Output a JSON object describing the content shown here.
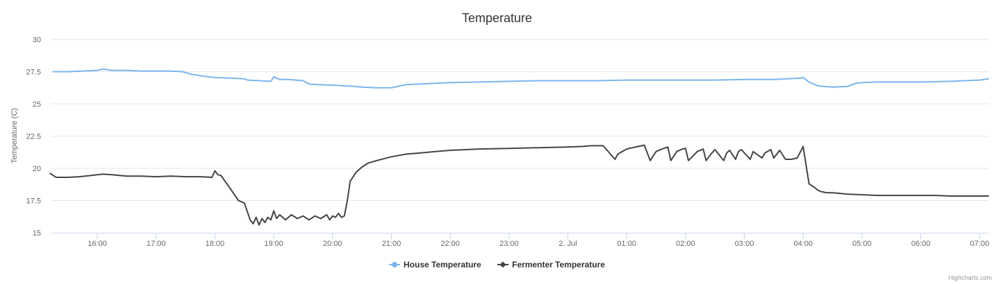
{
  "chart_data": {
    "type": "line",
    "title": "Temperature",
    "ylabel": "Temperature (C)",
    "xlabel": "",
    "ylim": [
      15,
      30
    ],
    "yticks": [
      "15",
      "17.5",
      "20",
      "22.5",
      "25",
      "27.5",
      "30"
    ],
    "ytick_values": [
      15,
      17.5,
      20,
      22.5,
      25,
      27.5,
      30
    ],
    "xlim": [
      15.22,
      31.15
    ],
    "xticks": [
      "16:00",
      "17:00",
      "18:00",
      "19:00",
      "20:00",
      "21:00",
      "22:00",
      "23:00",
      "2. Jul",
      "01:00",
      "02:00",
      "03:00",
      "04:00",
      "05:00",
      "06:00",
      "07:00"
    ],
    "xtick_values": [
      16,
      17,
      18,
      19,
      20,
      21,
      22,
      23,
      24,
      25,
      26,
      27,
      28,
      29,
      30,
      31
    ],
    "grid": true,
    "legend_position": "bottom",
    "series": [
      {
        "name": "House Temperature",
        "color": "#7cb5ec",
        "marker": "circle",
        "x": [
          15.25,
          15.5,
          15.75,
          16.0,
          16.1,
          16.25,
          16.5,
          16.75,
          17.0,
          17.25,
          17.45,
          17.6,
          17.8,
          18.0,
          18.25,
          18.5,
          18.55,
          18.75,
          18.95,
          19.0,
          19.1,
          19.25,
          19.5,
          19.6,
          19.75,
          20.0,
          20.25,
          20.5,
          20.75,
          21.0,
          21.25,
          21.5,
          21.75,
          22.0,
          22.5,
          23.0,
          23.5,
          24.0,
          24.5,
          25.0,
          25.5,
          26.0,
          26.5,
          27.0,
          27.5,
          27.95,
          28.0,
          28.1,
          28.25,
          28.5,
          28.75,
          28.9,
          29.0,
          29.25,
          29.5,
          30.0,
          30.5,
          30.75,
          31.0,
          31.15
        ],
        "y": [
          27.5,
          27.5,
          27.55,
          27.6,
          27.7,
          27.6,
          27.6,
          27.55,
          27.55,
          27.55,
          27.5,
          27.3,
          27.15,
          27.05,
          27.0,
          26.95,
          26.85,
          26.8,
          26.75,
          27.1,
          26.9,
          26.9,
          26.8,
          26.55,
          26.5,
          26.45,
          26.4,
          26.3,
          26.25,
          26.25,
          26.5,
          26.55,
          26.6,
          26.65,
          26.7,
          26.75,
          26.8,
          26.8,
          26.8,
          26.85,
          26.85,
          26.85,
          26.85,
          26.9,
          26.9,
          27.0,
          27.05,
          26.7,
          26.4,
          26.3,
          26.35,
          26.6,
          26.65,
          26.7,
          26.7,
          26.7,
          26.75,
          26.8,
          26.85,
          26.95
        ]
      },
      {
        "name": "Fermenter Temperature",
        "color": "#434348",
        "marker": "diamond",
        "x": [
          15.2,
          15.3,
          15.5,
          15.7,
          15.9,
          16.0,
          16.1,
          16.25,
          16.5,
          16.75,
          17.0,
          17.25,
          17.5,
          17.75,
          17.95,
          18.0,
          18.05,
          18.1,
          18.25,
          18.4,
          18.5,
          18.6,
          18.65,
          18.7,
          18.75,
          18.8,
          18.85,
          18.9,
          18.95,
          19.0,
          19.05,
          19.1,
          19.2,
          19.3,
          19.4,
          19.5,
          19.6,
          19.7,
          19.8,
          19.9,
          19.95,
          20.0,
          20.05,
          20.1,
          20.15,
          20.2,
          20.25,
          20.3,
          20.4,
          20.5,
          20.6,
          20.75,
          21.0,
          21.25,
          21.5,
          21.75,
          22.0,
          22.5,
          23.0,
          23.5,
          24.0,
          24.25,
          24.4,
          24.6,
          24.8,
          24.85,
          25.0,
          25.1,
          25.2,
          25.3,
          25.4,
          25.5,
          25.6,
          25.7,
          25.75,
          25.85,
          25.95,
          26.0,
          26.05,
          26.2,
          26.3,
          26.35,
          26.45,
          26.5,
          26.65,
          26.7,
          26.75,
          26.85,
          26.9,
          26.95,
          27.1,
          27.15,
          27.3,
          27.35,
          27.45,
          27.5,
          27.6,
          27.7,
          27.8,
          27.9,
          28.0,
          28.1,
          28.2,
          28.25,
          28.3,
          28.35,
          28.4,
          28.5,
          28.75,
          29.0,
          29.25,
          29.5,
          29.75,
          30.0,
          30.25,
          30.5,
          30.75,
          31.0,
          31.15
        ],
        "y": [
          19.6,
          19.3,
          19.3,
          19.35,
          19.45,
          19.5,
          19.55,
          19.5,
          19.4,
          19.4,
          19.35,
          19.4,
          19.35,
          19.35,
          19.3,
          19.8,
          19.5,
          19.45,
          18.5,
          17.5,
          17.3,
          16.0,
          15.7,
          16.2,
          15.6,
          16.1,
          15.8,
          16.2,
          16.0,
          16.7,
          16.1,
          16.4,
          16.0,
          16.4,
          16.1,
          16.3,
          16.0,
          16.3,
          16.1,
          16.4,
          16.0,
          16.3,
          16.2,
          16.5,
          16.2,
          16.3,
          17.5,
          19.0,
          19.7,
          20.1,
          20.4,
          20.6,
          20.9,
          21.1,
          21.2,
          21.3,
          21.4,
          21.5,
          21.55,
          21.6,
          21.65,
          21.7,
          21.75,
          21.75,
          20.7,
          21.1,
          21.5,
          21.6,
          21.7,
          21.8,
          20.6,
          21.3,
          21.5,
          21.65,
          20.6,
          21.3,
          21.5,
          21.55,
          20.6,
          21.3,
          21.5,
          20.6,
          21.2,
          21.45,
          20.6,
          21.2,
          21.4,
          20.7,
          21.3,
          21.45,
          20.7,
          21.3,
          20.8,
          21.2,
          21.45,
          20.8,
          21.4,
          20.7,
          20.7,
          20.8,
          21.7,
          18.8,
          18.5,
          18.3,
          18.2,
          18.15,
          18.1,
          18.1,
          18.0,
          17.95,
          17.9,
          17.9,
          17.9,
          17.9,
          17.9,
          17.85,
          17.85,
          17.85,
          17.85
        ]
      }
    ]
  },
  "credits": "Highcharts.com"
}
